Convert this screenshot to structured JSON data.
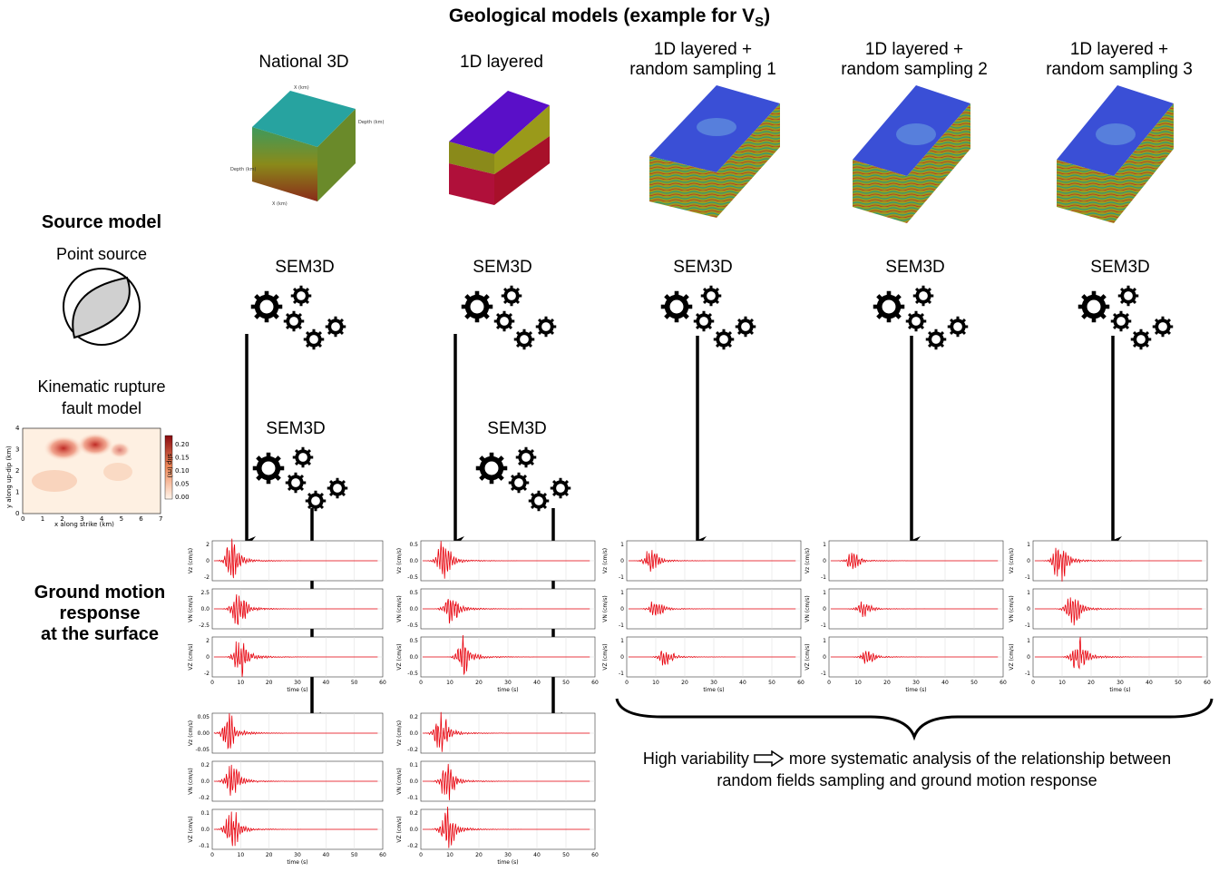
{
  "title": "Geological models (example for V",
  "title_sub": "S",
  "title_end": ")",
  "columns": [
    {
      "title": "National 3D",
      "sem": "SEM3D"
    },
    {
      "title": "1D layered",
      "sem": "SEM3D"
    },
    {
      "title": "1D layered +\nrandom sampling 1",
      "sem": "SEM3D"
    },
    {
      "title": "1D layered +\nrandom sampling 2",
      "sem": "SEM3D"
    },
    {
      "title": "1D layered +\nrandom sampling 3",
      "sem": "SEM3D"
    }
  ],
  "source_model": {
    "heading": "Source model",
    "point_source": "Point source",
    "kinematic": "Kinematic rupture\nfault model",
    "sem_kin_1": "SEM3D",
    "sem_kin_2": "SEM3D"
  },
  "ground_motion": {
    "heading": "Ground motion\nresponse\nat the surface"
  },
  "variability": {
    "left": "High variability",
    "right": "more systematic analysis of the relationship between",
    "line2": "random fields sampling and ground motion response"
  },
  "slip_map": {
    "xlabel": "x along strike (km)",
    "ylabel": "y along up-dip (km)",
    "colorbar_label": "slip (m)",
    "x_ticks": [
      "0",
      "1",
      "2",
      "3",
      "4",
      "5",
      "6",
      "7"
    ],
    "y_ticks": [
      "0",
      "1",
      "2",
      "3",
      "4"
    ],
    "cb_ticks": [
      "0.20",
      "0.15",
      "0.10",
      "0.05",
      "0.00"
    ]
  },
  "seismo_common": {
    "xlabel": "time (s)",
    "x_ticks": [
      "0",
      "10",
      "20",
      "30",
      "40",
      "50",
      "60"
    ],
    "ylabels": [
      "Vz (cm/s)",
      "VN (cm/s)",
      "VZ (cm/s)"
    ],
    "color": "#e8000b"
  },
  "seismo_panels": [
    {
      "id": "national-point",
      "ticks": [
        [
          "2",
          "0",
          "-2"
        ],
        [
          "2.5",
          "0.0",
          "-2.5"
        ],
        [
          "2",
          "0",
          "-2"
        ]
      ]
    },
    {
      "id": "layered-point",
      "ticks": [
        [
          "0.5",
          "0.0",
          "-0.5"
        ],
        [
          "0.5",
          "0.0",
          "-0.5"
        ],
        [
          "0.5",
          "0.0",
          "-0.5"
        ]
      ]
    },
    {
      "id": "random1",
      "ticks": [
        [
          "1",
          "0",
          "-1"
        ],
        [
          "1",
          "0",
          "-1"
        ],
        [
          "1",
          "0",
          "-1"
        ]
      ]
    },
    {
      "id": "random2",
      "ticks": [
        [
          "1",
          "0",
          "-1"
        ],
        [
          "1",
          "0",
          "-1"
        ],
        [
          "1",
          "0",
          "-1"
        ]
      ]
    },
    {
      "id": "random3",
      "ticks": [
        [
          "1",
          "0",
          "-1"
        ],
        [
          "1",
          "0",
          "-1"
        ],
        [
          "1",
          "0",
          "-1"
        ]
      ]
    },
    {
      "id": "national-kinematic",
      "ticks": [
        [
          "0.05",
          "0.00",
          "-0.05"
        ],
        [
          "0.2",
          "0.0",
          "-0.2"
        ],
        [
          "0.1",
          "0.0",
          "-0.1"
        ]
      ]
    },
    {
      "id": "layered-kinematic",
      "ticks": [
        [
          "0.2",
          "0.0",
          "-0.2"
        ],
        [
          "0.1",
          "0.0",
          "-0.1"
        ],
        [
          "0.2",
          "0.0",
          "-0.2"
        ]
      ]
    }
  ],
  "colors": {
    "teal_top": "#27a3a0",
    "purple_top": "#5a0fc8",
    "blue_top": "#3a4fd6",
    "olive": "#8a8a1a",
    "crimson": "#b0103a"
  }
}
